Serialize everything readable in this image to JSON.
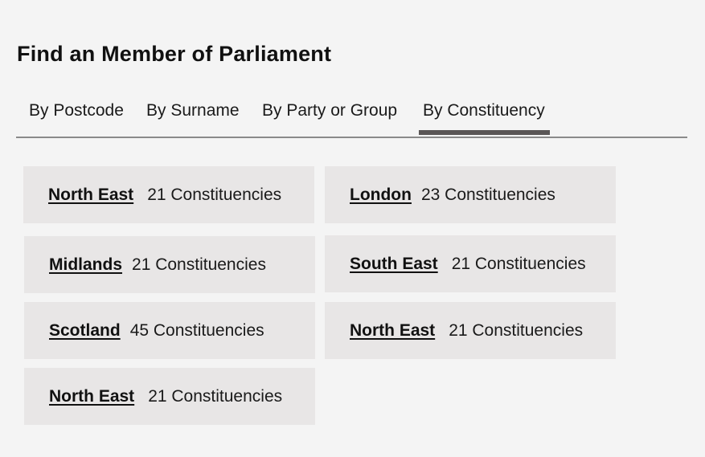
{
  "page": {
    "title": "Find an Member of Parliament"
  },
  "tabs": [
    {
      "label": "By Postcode",
      "active": false
    },
    {
      "label": "By Surname",
      "active": false
    },
    {
      "label": "By Party or Group",
      "active": false
    },
    {
      "label": "By Constituency",
      "active": true
    }
  ],
  "regions": [
    {
      "name": "North East",
      "count": "21 Constituencies"
    },
    {
      "name": "London",
      "count": "23 Constituencies"
    },
    {
      "name": "Midlands",
      "count": "21 Constituencies"
    },
    {
      "name": "South East",
      "count": "21 Constituencies"
    },
    {
      "name": "Scotland",
      "count": "45 Constituencies"
    },
    {
      "name": "North East",
      "count": "21 Constituencies"
    },
    {
      "name": "North East",
      "count": "21 Constituencies"
    }
  ],
  "colors": {
    "background": "#f4f4f4",
    "card": "#e8e6e6",
    "active_tab_indicator": "#5a5656",
    "tab_rule": "#8a8a8a"
  }
}
